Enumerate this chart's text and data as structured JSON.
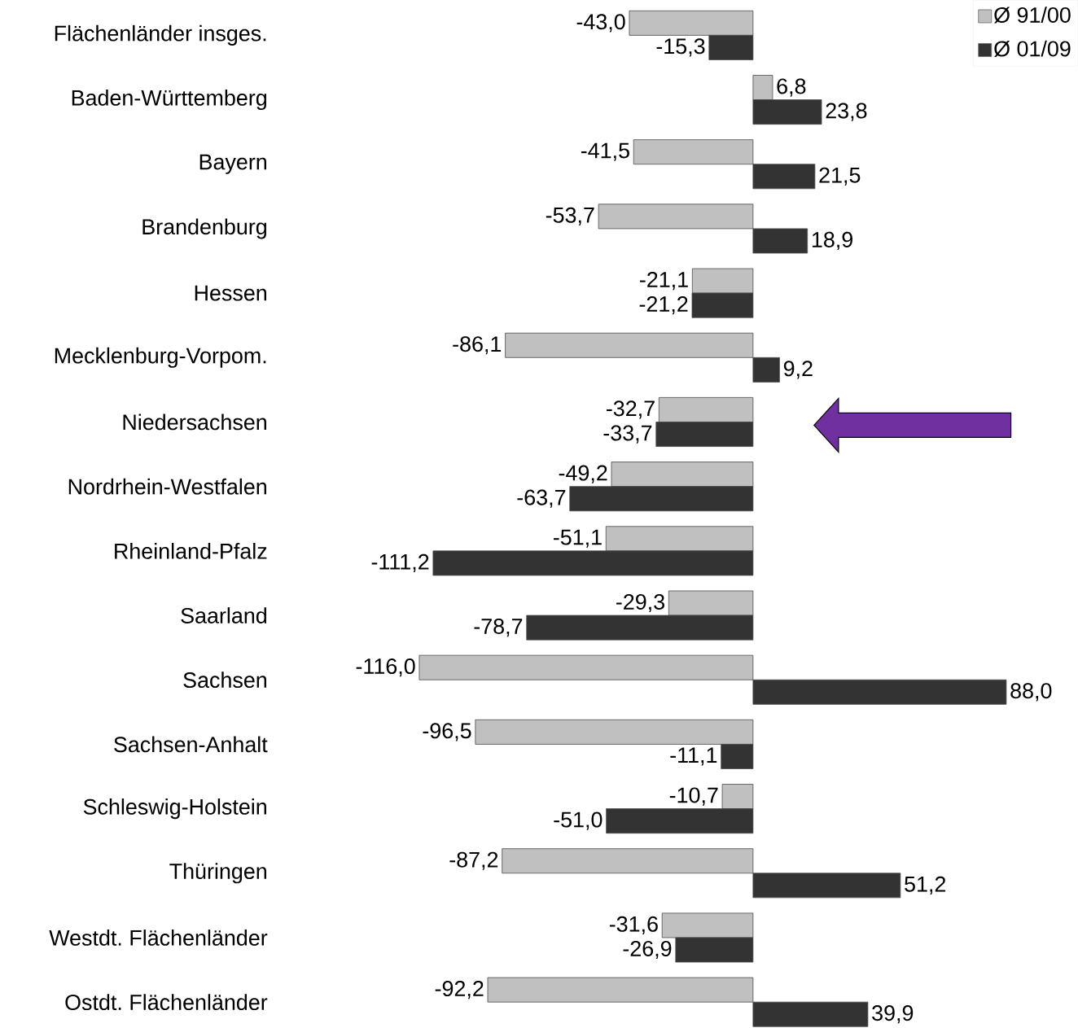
{
  "chart_data": {
    "type": "bar",
    "orientation": "horizontal",
    "categories": [
      "Flächenländer insges.",
      "Baden-Württemberg",
      "Bayern",
      "Brandenburg",
      "Hessen",
      "Mecklenburg-Vorpom.",
      "Niedersachsen",
      "Nordrhein-Westfalen",
      "Rheinland-Pfalz",
      "Saarland",
      "Sachsen",
      "Sachsen-Anhalt",
      "Schleswig-Holstein",
      "Thüringen",
      "Westdt. Flächenländer",
      "Ostdt. Flächenländer"
    ],
    "series": [
      {
        "name": "Ø 91/00",
        "color": "#c0c0c0",
        "values": [
          -43.0,
          6.8,
          -41.5,
          -53.7,
          -21.1,
          -86.1,
          -32.7,
          -49.2,
          -51.1,
          -29.3,
          -116.0,
          -96.5,
          -10.7,
          -87.2,
          -31.6,
          -92.2
        ],
        "value_labels": [
          "-43,0",
          "6,8",
          "-41,5",
          "-53,7",
          "-21,1",
          "-86,1",
          "-32,7",
          "-49,2",
          "-51,1",
          "-29,3",
          "-116,0",
          "-96,5",
          "-10,7",
          "-87,2",
          "-31,6",
          "-92,2"
        ]
      },
      {
        "name": "Ø 01/09",
        "color": "#333333",
        "values": [
          -15.3,
          23.8,
          21.5,
          18.9,
          -21.2,
          9.2,
          -33.7,
          -63.7,
          -111.2,
          -78.7,
          88.0,
          -11.1,
          -51.0,
          51.2,
          -26.9,
          39.9
        ],
        "value_labels": [
          "-15,3",
          "23,8",
          "21,5",
          "18,9",
          "-21,2",
          "9,2",
          "-33,7",
          "-63,7",
          "-111,2",
          "-78,7",
          "88,0",
          "-11,1",
          "-51,0",
          "51,2",
          "-26,9",
          "39,9"
        ]
      }
    ],
    "legend": "top right"
  }
}
